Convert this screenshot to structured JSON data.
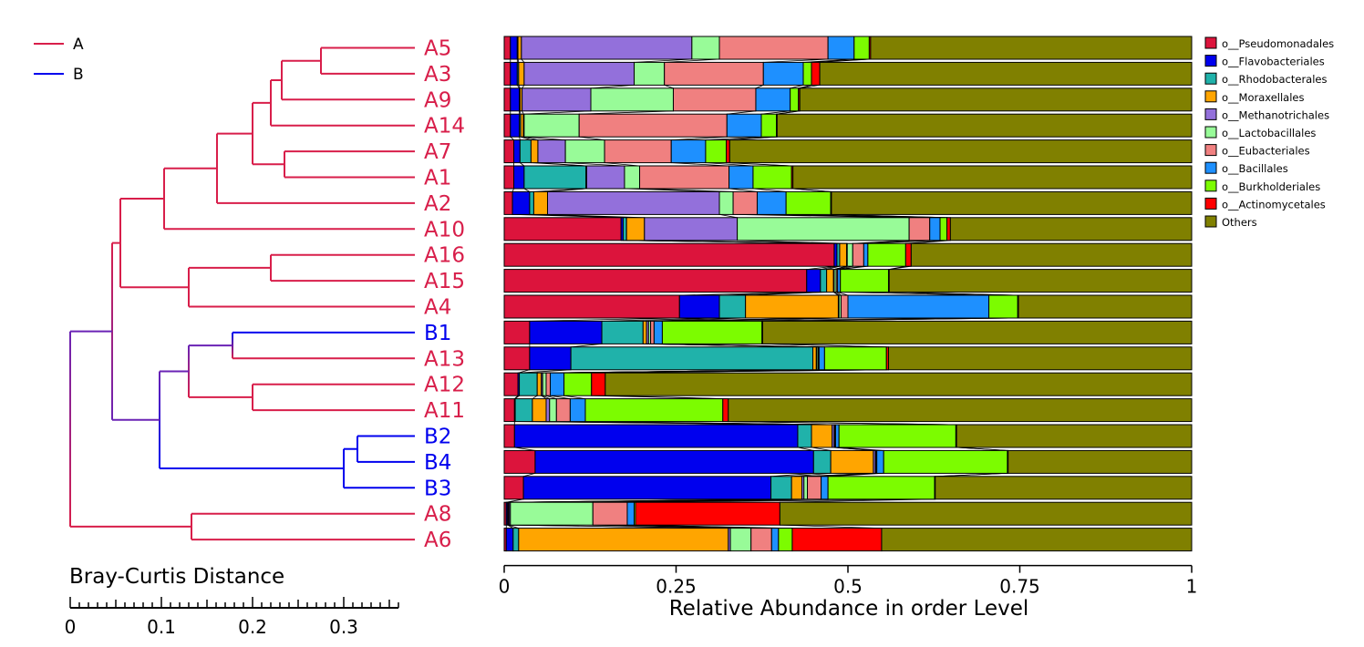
{
  "colors": {
    "group_A": "#d81e4a",
    "group_B": "#0000ee",
    "mixed_branch": "#6a23b5",
    "axis": "#000000"
  },
  "chart_data": [
    {
      "type": "dendrogram",
      "xlabel": "Bray-Curtis Distance",
      "x_ticks": [
        "0",
        "0.1",
        "0.2",
        "0.3"
      ],
      "xlim": [
        0,
        0.36
      ],
      "legend": [
        {
          "name": "A",
          "color": "#d81e4a"
        },
        {
          "name": "B",
          "color": "#0000ee"
        }
      ],
      "legend_position": "top-left",
      "leaves": [
        "A5",
        "A3",
        "A9",
        "A14",
        "A7",
        "A1",
        "A2",
        "A10",
        "A16",
        "A15",
        "A4",
        "B1",
        "A13",
        "A12",
        "A11",
        "B2",
        "B4",
        "B3",
        "A8",
        "A6"
      ],
      "merges": [
        {
          "a": "A5",
          "b": "A3",
          "height": 0.275,
          "id": "n1"
        },
        {
          "a": "n1",
          "b": "A9",
          "height": 0.232,
          "id": "n2"
        },
        {
          "a": "n2",
          "b": "A14",
          "height": 0.22,
          "id": "n3"
        },
        {
          "a": "A7",
          "b": "A1",
          "height": 0.235,
          "id": "n4"
        },
        {
          "a": "n3",
          "b": "n4",
          "height": 0.2,
          "id": "n5"
        },
        {
          "a": "n5",
          "b": "A2",
          "height": 0.161,
          "id": "n6"
        },
        {
          "a": "n6",
          "b": "A10",
          "height": 0.103,
          "id": "n7"
        },
        {
          "a": "A16",
          "b": "A15",
          "height": 0.22,
          "id": "n8"
        },
        {
          "a": "n8",
          "b": "A4",
          "height": 0.13,
          "id": "n9"
        },
        {
          "a": "n7",
          "b": "n9",
          "height": 0.055,
          "id": "n10"
        },
        {
          "a": "B1",
          "b": "A13",
          "height": 0.178,
          "id": "n11"
        },
        {
          "a": "A12",
          "b": "A11",
          "height": 0.2,
          "id": "n12"
        },
        {
          "a": "n11",
          "b": "n12",
          "height": 0.13,
          "id": "n13"
        },
        {
          "a": "B2",
          "b": "B4",
          "height": 0.315,
          "id": "n14"
        },
        {
          "a": "n14",
          "b": "B3",
          "height": 0.3,
          "id": "n15"
        },
        {
          "a": "n13",
          "b": "n15",
          "height": 0.098,
          "id": "n16"
        },
        {
          "a": "n10",
          "b": "n16",
          "height": 0.046,
          "id": "n17"
        },
        {
          "a": "A8",
          "b": "A6",
          "height": 0.133,
          "id": "n18"
        },
        {
          "a": "n17",
          "b": "n18",
          "height": 0.0,
          "id": "n19"
        }
      ]
    },
    {
      "type": "bar",
      "orientation": "horizontal",
      "stacked": true,
      "xlabel": "Relative Abundance in order Level",
      "x_ticks": [
        "0",
        "0.25",
        "0.5",
        "0.75",
        "1"
      ],
      "xlim": [
        0,
        1
      ],
      "legend_position": "right",
      "categories": [
        "A5",
        "A3",
        "A9",
        "A14",
        "A7",
        "A1",
        "A2",
        "A10",
        "A16",
        "A15",
        "A4",
        "B1",
        "A13",
        "A12",
        "A11",
        "B2",
        "B4",
        "B3",
        "A8",
        "A6"
      ],
      "series": [
        {
          "name": "o__Pseudomonadales",
          "color": "#dc143c",
          "values": [
            0.009,
            0.009,
            0.009,
            0.009,
            0.014,
            0.014,
            0.012,
            0.17,
            0.48,
            0.44,
            0.255,
            0.037,
            0.037,
            0.02,
            0.015,
            0.015,
            0.045,
            0.028,
            0.003,
            0.003
          ]
        },
        {
          "name": "o__Flavobacteriales",
          "color": "#0000ee",
          "values": [
            0.01,
            0.01,
            0.013,
            0.013,
            0.009,
            0.015,
            0.025,
            0.003,
            0.004,
            0.02,
            0.058,
            0.105,
            0.06,
            0.002,
            0.001,
            0.412,
            0.405,
            0.36,
            0.002,
            0.01
          ]
        },
        {
          "name": "o__Rhodobacterales",
          "color": "#20b2aa",
          "values": [
            0.001,
            0.002,
            0.001,
            0.002,
            0.016,
            0.09,
            0.006,
            0.005,
            0.004,
            0.009,
            0.038,
            0.06,
            0.352,
            0.026,
            0.025,
            0.02,
            0.025,
            0.03,
            0.001,
            0.008
          ]
        },
        {
          "name": "o__Moraxellales",
          "color": "#ffa500",
          "values": [
            0.005,
            0.008,
            0.003,
            0.004,
            0.01,
            0.001,
            0.02,
            0.026,
            0.01,
            0.01,
            0.135,
            0.005,
            0.005,
            0.006,
            0.02,
            0.03,
            0.062,
            0.015,
            0.001,
            0.305
          ]
        },
        {
          "name": "o__Methanotrichales",
          "color": "#9370db",
          "values": [
            0.248,
            0.16,
            0.1,
            0.001,
            0.04,
            0.055,
            0.25,
            0.135,
            0.001,
            0.001,
            0.001,
            0.003,
            0.001,
            0.002,
            0.005,
            0.003,
            0.003,
            0.003,
            0.002,
            0.003
          ]
        },
        {
          "name": "o__Lactobacillales",
          "color": "#98fb98",
          "values": [
            0.04,
            0.044,
            0.12,
            0.08,
            0.057,
            0.022,
            0.02,
            0.25,
            0.008,
            0.003,
            0.003,
            0.003,
            0.002,
            0.005,
            0.01,
            0.001,
            0.001,
            0.005,
            0.12,
            0.03
          ]
        },
        {
          "name": "o__Eubacteriales",
          "color": "#f08080",
          "values": [
            0.158,
            0.144,
            0.12,
            0.215,
            0.097,
            0.13,
            0.035,
            0.03,
            0.016,
            0.002,
            0.01,
            0.005,
            0.001,
            0.006,
            0.02,
            0.001,
            0.001,
            0.02,
            0.05,
            0.03
          ]
        },
        {
          "name": "o__Bacillales",
          "color": "#1e90ff",
          "values": [
            0.038,
            0.058,
            0.05,
            0.05,
            0.05,
            0.035,
            0.042,
            0.015,
            0.006,
            0.004,
            0.205,
            0.012,
            0.008,
            0.02,
            0.022,
            0.005,
            0.01,
            0.01,
            0.01,
            0.01
          ]
        },
        {
          "name": "o__Burkholderiales",
          "color": "#7cfc00",
          "values": [
            0.022,
            0.012,
            0.012,
            0.022,
            0.03,
            0.056,
            0.065,
            0.01,
            0.055,
            0.07,
            0.042,
            0.145,
            0.09,
            0.04,
            0.2,
            0.17,
            0.18,
            0.155,
            0.002,
            0.02
          ]
        },
        {
          "name": "o__Actinomycetales",
          "color": "#ff0000",
          "values": [
            0.002,
            0.012,
            0.002,
            0.001,
            0.005,
            0.002,
            0.001,
            0.005,
            0.008,
            0.001,
            0.001,
            0.001,
            0.003,
            0.02,
            0.008,
            0.001,
            0.001,
            0.001,
            0.21,
            0.13
          ]
        },
        {
          "name": "Others",
          "color": "#808000",
          "values": [
            0.467,
            0.541,
            0.57,
            0.603,
            0.672,
            0.58,
            0.524,
            0.351,
            0.408,
            0.44,
            0.252,
            0.624,
            0.441,
            0.853,
            0.674,
            0.342,
            0.267,
            0.373,
            0.599,
            0.451
          ]
        }
      ]
    }
  ]
}
